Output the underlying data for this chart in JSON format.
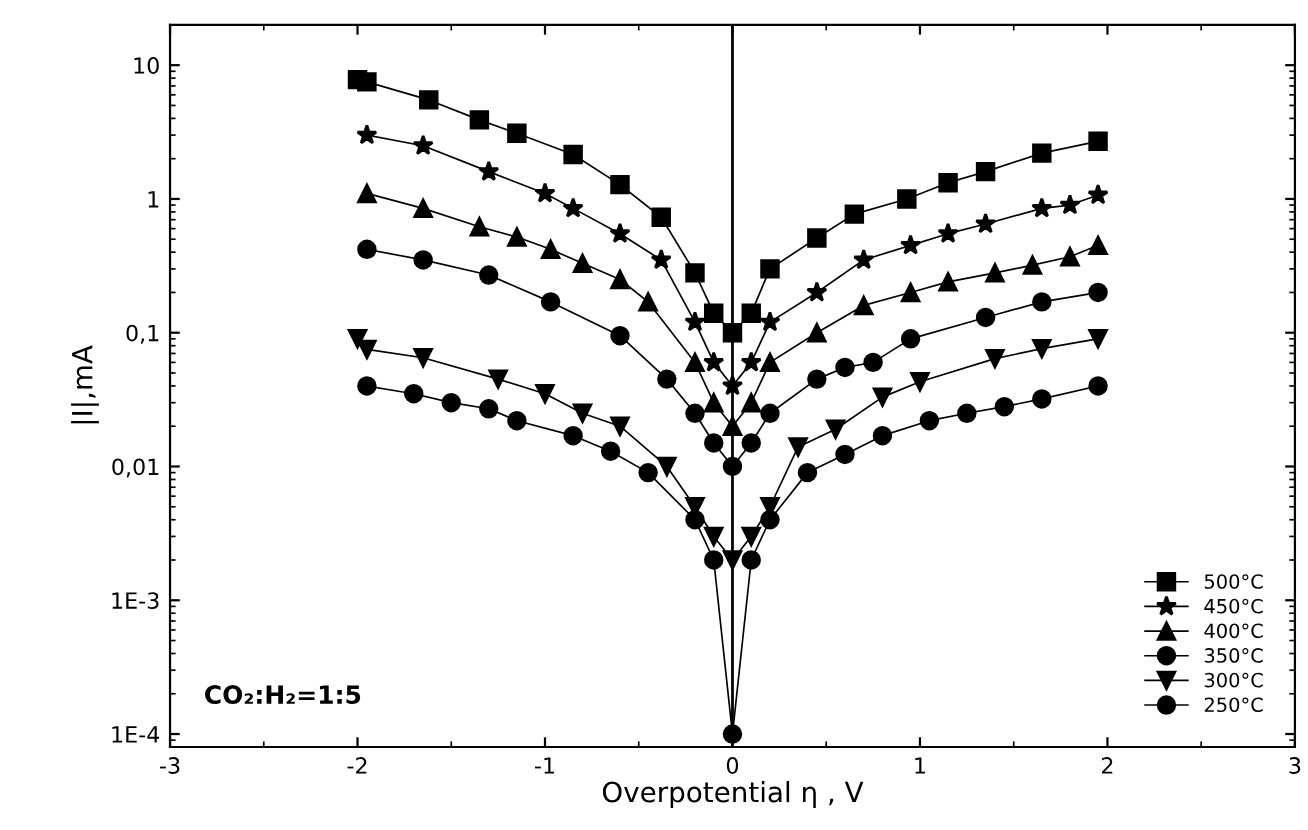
{
  "chart_data": {
    "type": "line",
    "xlabel": "Overpotential η , V",
    "ylabel": "|I|,mA",
    "log": "y",
    "xlim": [
      -3,
      3
    ],
    "xticks": [
      -3,
      -2,
      -1,
      0,
      1,
      2,
      3
    ],
    "ylim": [
      8e-05,
      20
    ],
    "yticks": [
      {
        "value": 10,
        "label": "10"
      },
      {
        "value": 1,
        "label": "1"
      },
      {
        "value": 0.1,
        "label": "0,1"
      },
      {
        "value": 0.01,
        "label": "0,01"
      },
      {
        "value": 0.001,
        "label": "1E-3"
      },
      {
        "value": 0.0001,
        "label": "1E-4"
      }
    ],
    "grid": false,
    "legend": "bottom right",
    "line_style": "solid",
    "ref_lines": [
      {
        "axis": "x",
        "value": 0,
        "color": "#000000"
      }
    ],
    "annotations": [
      {
        "text": "CO₂:H₂=1:5"
      }
    ],
    "series": [
      {
        "name": "500°C",
        "color": "#000000",
        "marker": "square",
        "x": [
          -2,
          -1.95,
          -1.62,
          -1.35,
          -1.15,
          -0.85,
          -0.6,
          -0.38,
          -0.2,
          -0.1,
          0,
          0.1,
          0.2,
          0.45,
          0.65,
          0.93,
          1.15,
          1.35,
          1.65,
          1.95
        ],
        "values": [
          7.8,
          7.5,
          5.5,
          3.9,
          3.1,
          2.15,
          1.28,
          0.73,
          0.28,
          0.14,
          0.1,
          0.14,
          0.3,
          0.51,
          0.77,
          1.0,
          1.32,
          1.6,
          2.2,
          2.7
        ]
      },
      {
        "name": "450°C",
        "color": "#000000",
        "marker": "star",
        "x": [
          -1.95,
          -1.65,
          -1.3,
          -1.0,
          -0.85,
          -0.6,
          -0.38,
          -0.2,
          -0.1,
          0,
          0.1,
          0.2,
          0.45,
          0.7,
          0.95,
          1.15,
          1.35,
          1.65,
          1.8,
          1.95
        ],
        "values": [
          3.0,
          2.5,
          1.6,
          1.1,
          0.85,
          0.55,
          0.35,
          0.12,
          0.06,
          0.04,
          0.06,
          0.12,
          0.2,
          0.35,
          0.45,
          0.55,
          0.65,
          0.85,
          0.9,
          1.07
        ]
      },
      {
        "name": "400°C",
        "color": "#000000",
        "marker": "triangle",
        "x": [
          -1.95,
          -1.65,
          -1.35,
          -1.15,
          -0.97,
          -0.8,
          -0.6,
          -0.45,
          -0.2,
          -0.1,
          0,
          0.1,
          0.2,
          0.45,
          0.7,
          0.95,
          1.15,
          1.4,
          1.6,
          1.8,
          1.95
        ],
        "values": [
          1.1,
          0.85,
          0.62,
          0.52,
          0.42,
          0.33,
          0.25,
          0.17,
          0.06,
          0.03,
          0.02,
          0.03,
          0.06,
          0.1,
          0.16,
          0.2,
          0.24,
          0.28,
          0.32,
          0.37,
          0.45
        ]
      },
      {
        "name": "350°C",
        "color": "#000000",
        "marker": "circle",
        "x": [
          -1.95,
          -1.65,
          -1.3,
          -0.97,
          -0.6,
          -0.35,
          -0.2,
          -0.1,
          0,
          0.1,
          0.2,
          0.45,
          0.6,
          0.75,
          0.95,
          1.35,
          1.65,
          1.95
        ],
        "values": [
          0.42,
          0.35,
          0.27,
          0.17,
          0.095,
          0.045,
          0.025,
          0.015,
          0.01,
          0.015,
          0.025,
          0.045,
          0.055,
          0.06,
          0.09,
          0.13,
          0.17,
          0.2
        ]
      },
      {
        "name": "300°C",
        "color": "#000000",
        "marker": "triangle_down",
        "x": [
          -2.0,
          -1.95,
          -1.65,
          -1.25,
          -1.0,
          -0.8,
          -0.6,
          -0.35,
          -0.2,
          -0.1,
          0,
          0.1,
          0.2,
          0.35,
          0.55,
          0.8,
          1.0,
          1.4,
          1.65,
          1.95
        ],
        "values": [
          0.09,
          0.075,
          0.065,
          0.045,
          0.035,
          0.025,
          0.02,
          0.01,
          0.005,
          0.003,
          0.002,
          0.003,
          0.005,
          0.014,
          0.019,
          0.033,
          0.043,
          0.064,
          0.076,
          0.09
        ]
      },
      {
        "name": "250°C",
        "color": "#000000",
        "marker": "circle",
        "x": [
          -1.95,
          -1.7,
          -1.5,
          -1.3,
          -1.15,
          -0.85,
          -0.65,
          -0.45,
          -0.2,
          -0.1,
          0,
          0.1,
          0.2,
          0.4,
          0.6,
          0.8,
          1.05,
          1.25,
          1.45,
          1.65,
          1.95
        ],
        "values": [
          0.04,
          0.035,
          0.03,
          0.027,
          0.022,
          0.017,
          0.013,
          0.009,
          0.004,
          0.002,
          0.0001,
          0.002,
          0.004,
          0.009,
          0.0123,
          0.017,
          0.022,
          0.025,
          0.028,
          0.032,
          0.04
        ]
      }
    ]
  }
}
